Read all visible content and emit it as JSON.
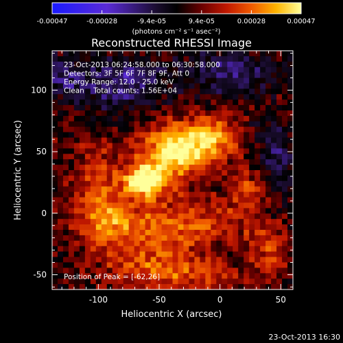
{
  "chart_data": {
    "type": "heatmap",
    "title": "Reconstructed RHESSI Image",
    "xlabel": "Heliocentric X (arcsec)",
    "ylabel": "Heliocentric Y (arcsec)",
    "xlim": [
      -138,
      60
    ],
    "ylim": [
      -62,
      132
    ],
    "xticks": [
      -100,
      -50,
      0,
      50
    ],
    "yticks": [
      -50,
      0,
      50,
      100
    ],
    "colorbar": {
      "range": [
        -0.00047,
        0.00047
      ],
      "tick_labels": [
        "-0.00047",
        "-0.00028",
        "-9.4e-05",
        "9.4e-05",
        "0.00028",
        "0.00047"
      ],
      "units": "(photons cm⁻² s⁻¹ asec⁻²)",
      "colormap": "RHESSI flux: blue (negative) to black, red, orange, yellow, white"
    },
    "annotations": [
      "23-Oct-2013 06:24:58.000 to 06:30:58.000",
      "Detectors: 3F 5F 6F 7F 8F 9F, Att 0",
      "Energy Range: 12.0 - 25.0 keV",
      "Clean    Total counts: 1.56E+04"
    ],
    "peak_text": "Position of Peak = [-62,26]",
    "peak_position": [
      -62,
      26
    ],
    "emission_regions": [
      {
        "x": -63,
        "y": 26,
        "sx": 11,
        "sy": 9,
        "amp": 1.0
      },
      {
        "x": -45,
        "y": 48,
        "sx": 15,
        "sy": 18,
        "amp": 0.72
      },
      {
        "x": -22,
        "y": 55,
        "sx": 12,
        "sy": 14,
        "amp": 0.6
      },
      {
        "x": -2,
        "y": 62,
        "sx": 12,
        "sy": 12,
        "amp": 0.55
      },
      {
        "x": -100,
        "y": 20,
        "sx": 14,
        "sy": 24,
        "amp": 0.45
      },
      {
        "x": -85,
        "y": -10,
        "sx": 20,
        "sy": 14,
        "amp": 0.4
      },
      {
        "x": -30,
        "y": -10,
        "sx": 30,
        "sy": 14,
        "amp": 0.45
      },
      {
        "x": -60,
        "y": -42,
        "sx": 26,
        "sy": 12,
        "amp": 0.35
      },
      {
        "x": 25,
        "y": 20,
        "sx": 14,
        "sy": 18,
        "amp": 0.35
      },
      {
        "x": 40,
        "y": -30,
        "sx": 12,
        "sy": 16,
        "amp": 0.3
      },
      {
        "x": -20,
        "y": -50,
        "sx": 28,
        "sy": 10,
        "amp": 0.3
      }
    ],
    "negative_regions": [
      {
        "x": -80,
        "y": 105,
        "sx": 25,
        "sy": 14,
        "amp": -0.45
      },
      {
        "x": 10,
        "y": 115,
        "sx": 25,
        "sy": 12,
        "amp": -0.4
      },
      {
        "x": 45,
        "y": 40,
        "sx": 12,
        "sy": 22,
        "amp": -0.35
      },
      {
        "x": -128,
        "y": 110,
        "sx": 12,
        "sy": 12,
        "amp": -0.3
      }
    ],
    "value_scale": 0.00047
  },
  "footer_timestamp": "23-Oct-2013 16:30"
}
